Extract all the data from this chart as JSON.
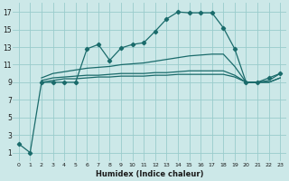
{
  "xlabel": "Humidex (Indice chaleur)",
  "background_color": "#cce8e8",
  "grid_color": "#99cccc",
  "line_color": "#1a6b6b",
  "xlim": [
    -0.5,
    23.5
  ],
  "ylim": [
    0,
    18
  ],
  "xticks": [
    0,
    1,
    2,
    3,
    4,
    5,
    6,
    7,
    8,
    9,
    10,
    11,
    12,
    13,
    14,
    15,
    16,
    17,
    18,
    19,
    20,
    21,
    22,
    23
  ],
  "yticks": [
    1,
    3,
    5,
    7,
    9,
    11,
    13,
    15,
    17
  ],
  "line1_x": [
    0,
    1,
    2,
    3,
    4,
    5,
    6,
    7,
    8,
    9,
    10,
    11,
    12,
    13,
    14,
    15,
    16,
    17,
    18,
    19,
    20,
    21,
    22,
    23
  ],
  "line1_y": [
    2,
    1,
    9,
    9,
    9,
    9,
    12.8,
    13.3,
    11.5,
    12.9,
    13.3,
    13.5,
    14.8,
    16.2,
    17.0,
    16.9,
    16.9,
    16.9,
    15.2,
    12.8,
    9,
    9,
    9.5,
    10
  ],
  "line2_x": [
    2,
    3,
    4,
    5,
    6,
    7,
    8,
    9,
    10,
    11,
    12,
    13,
    14,
    15,
    16,
    17,
    18,
    19,
    20,
    21,
    22,
    23
  ],
  "line2_y": [
    9.5,
    10.0,
    10.2,
    10.4,
    10.6,
    10.7,
    10.8,
    11.0,
    11.1,
    11.2,
    11.4,
    11.6,
    11.8,
    12.0,
    12.1,
    12.2,
    12.2,
    10.8,
    9.0,
    9.0,
    9.2,
    10.0
  ],
  "line3_x": [
    2,
    3,
    4,
    5,
    6,
    7,
    8,
    9,
    10,
    11,
    12,
    13,
    14,
    15,
    16,
    17,
    18,
    19,
    20,
    21,
    22,
    23
  ],
  "line3_y": [
    9.2,
    9.5,
    9.6,
    9.7,
    9.8,
    9.8,
    9.9,
    10.0,
    10.0,
    10.0,
    10.1,
    10.1,
    10.2,
    10.3,
    10.3,
    10.3,
    10.3,
    9.8,
    9.0,
    9.0,
    9.0,
    9.5
  ],
  "line4_x": [
    2,
    3,
    4,
    5,
    6,
    7,
    8,
    9,
    10,
    11,
    12,
    13,
    14,
    15,
    16,
    17,
    18,
    19,
    20,
    21,
    22,
    23
  ],
  "line4_y": [
    9.0,
    9.2,
    9.4,
    9.4,
    9.5,
    9.6,
    9.6,
    9.7,
    9.7,
    9.7,
    9.8,
    9.8,
    9.9,
    9.9,
    9.9,
    9.9,
    9.9,
    9.6,
    9.0,
    9.0,
    9.0,
    9.5
  ]
}
